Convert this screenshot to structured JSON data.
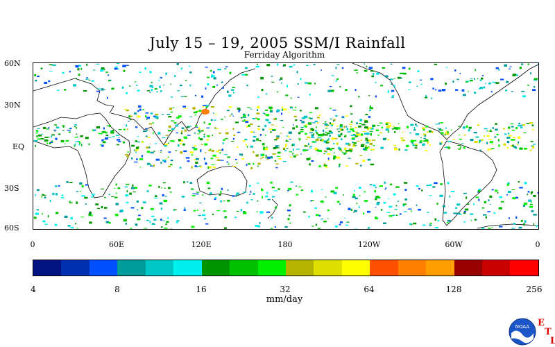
{
  "title": "July 15 – 19, 2005 SSM/I Rainfall",
  "subtitle": "Ferriday Algorithm",
  "lat_labels": [
    "60N",
    "30N",
    "EQ",
    "30S",
    "60S"
  ],
  "lon_labels": [
    "0",
    "60E",
    "120E",
    "180",
    "120W",
    "60W",
    "0"
  ],
  "colorbar": {
    "colors": [
      "#00137f",
      "#0030b0",
      "#0050ff",
      "#009b9b",
      "#00c8c8",
      "#00f0f0",
      "#009400",
      "#00c000",
      "#00f000",
      "#b4b400",
      "#dede00",
      "#ffff00",
      "#ff5000",
      "#ff8000",
      "#ffa000",
      "#960000",
      "#c80000",
      "#ff0000"
    ],
    "tick_labels": [
      "4",
      "8",
      "16",
      "32",
      "64",
      "128",
      "256"
    ]
  },
  "unit": "mm/day",
  "logo": {
    "name": "NOAA",
    "text": "NOAA"
  },
  "etl": {
    "e": "E",
    "t": "T",
    "l": "L"
  }
}
